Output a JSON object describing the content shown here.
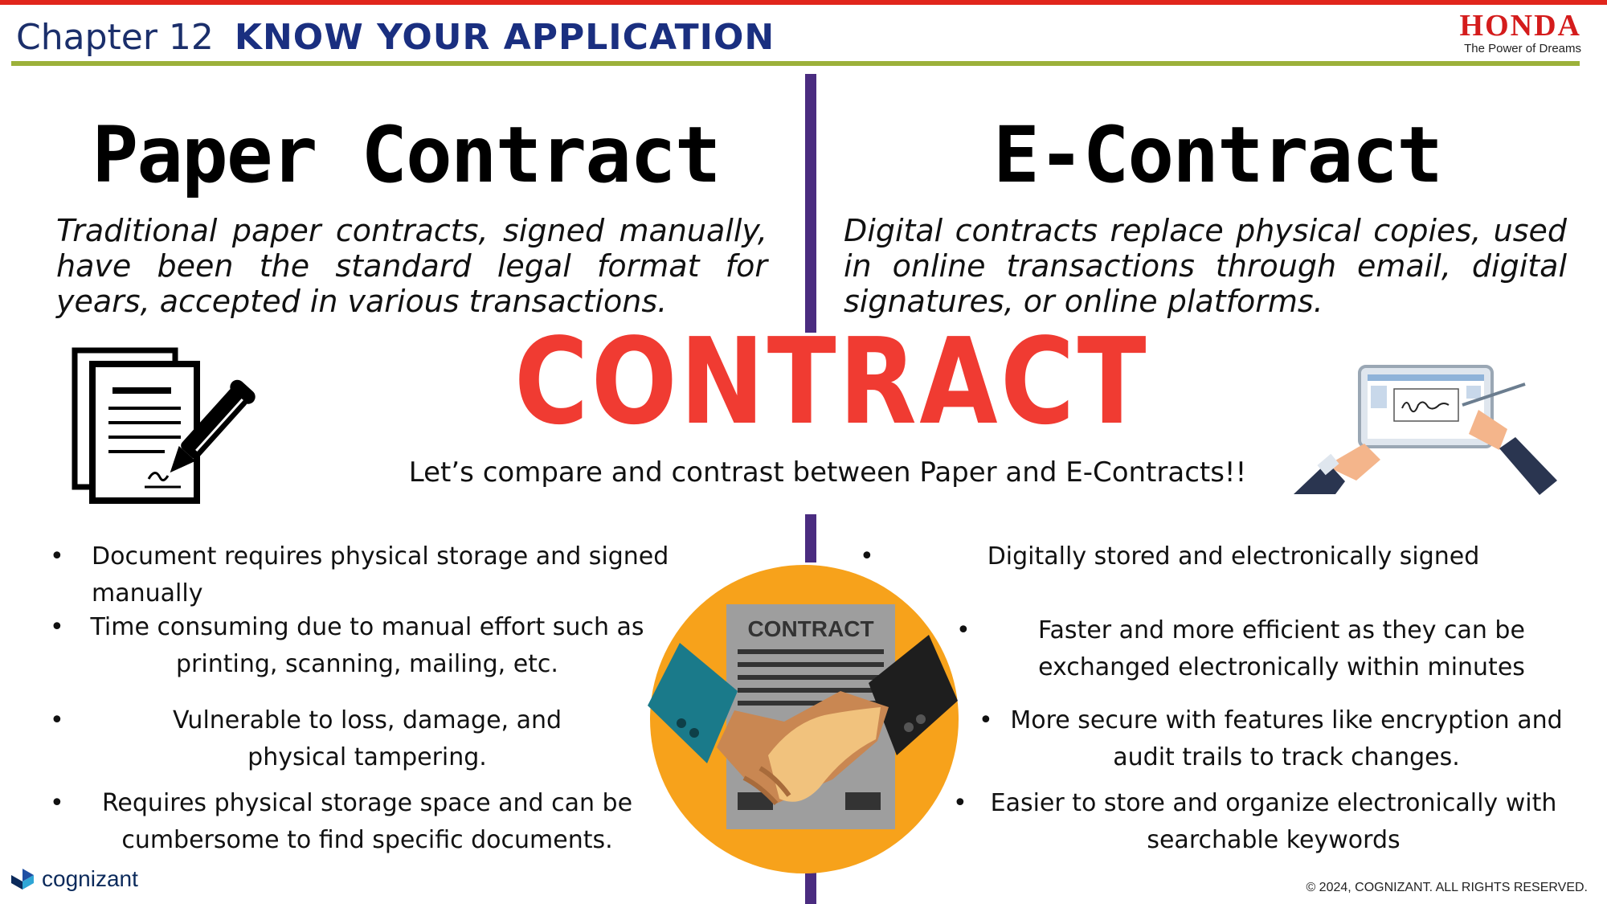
{
  "header": {
    "chapter": "Chapter 12",
    "title": "KNOW YOUR APPLICATION",
    "brand": "HONDA",
    "brand_tagline": "The Power of Dreams"
  },
  "paper": {
    "heading": "Paper Contract",
    "description": "Traditional paper contracts, signed manually, have been the standard legal format for years, accepted in various transactions.",
    "bullets": [
      "Document requires physical storage and signed manually",
      "Time consuming due to manual effort such as printing, scanning, mailing, etc.",
      "Vulnerable to loss, damage, and physical tampering.",
      "Requires physical storage space and can be cumbersome to find specific documents."
    ]
  },
  "econtract": {
    "heading": "E-Contract",
    "description": "Digital contracts replace physical copies, used in online transactions through email, digital signatures, or online platforms.",
    "bullets": [
      "Digitally stored and electronically signed",
      "Faster and more efficient  as they can be exchanged electronically within minutes",
      "More secure with features like encryption and audit trails to track changes.",
      "Easier to store and organize electronically with searchable keywords"
    ]
  },
  "center": {
    "word": "CONTRACT",
    "subtitle": "Let’s compare and contrast between Paper and E-Contracts!!",
    "doc_label": "CONTRACT"
  },
  "footer": {
    "logo": "cognizant",
    "copyright": "© 2024, COGNIZANT. ALL RIGHTS RESERVED."
  },
  "colors": {
    "accent_red": "#f03b32",
    "divider_purple": "#4a2c80",
    "header_blue": "#1a2f80",
    "rule_green": "#9cb13a",
    "circle_orange": "#f7a21b"
  }
}
